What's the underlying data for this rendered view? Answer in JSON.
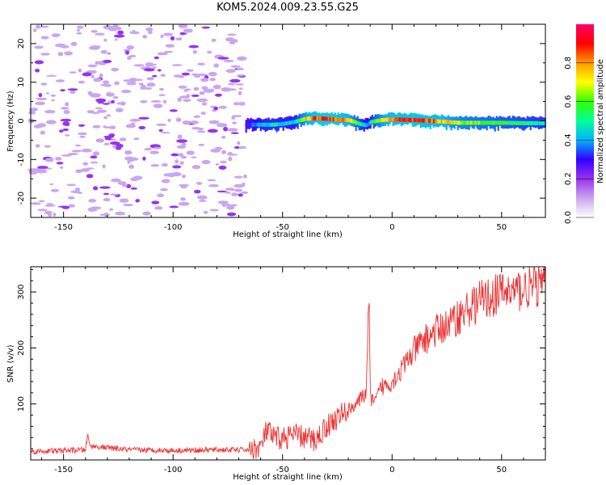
{
  "title": "KOM5.2024.009.23.55.G25",
  "chart_data": [
    {
      "type": "heatmap",
      "xlabel": "Height of straight line (km)",
      "ylabel": "Frequency (Hz)",
      "xlim": [
        -165,
        70
      ],
      "ylim": [
        -25,
        25
      ],
      "xticks": [
        -150,
        -100,
        -50,
        0,
        50
      ],
      "yticks": [
        -20,
        -10,
        0,
        10,
        20
      ],
      "colorbar": {
        "label": "Normalized spectral amplitude",
        "range": [
          0.0,
          1.0
        ],
        "ticks": [
          "0.0",
          "0.2",
          "0.4",
          "0.6",
          "0.8"
        ],
        "colors": [
          "#ffffff",
          "#c9a6f0",
          "#9933ee",
          "#3300ff",
          "#00b3ff",
          "#00ff99",
          "#33ff00",
          "#ffff00",
          "#ff9900",
          "#ff0000",
          "#ff0066"
        ]
      },
      "noise_region_x": [
        -165,
        -67
      ],
      "signal_track": {
        "x": [
          -67,
          -60,
          -55,
          -50,
          -45,
          -40,
          -35,
          -30,
          -25,
          -20,
          -15,
          -12,
          -10,
          -5,
          0,
          5,
          10,
          20,
          30,
          40,
          50,
          60,
          70
        ],
        "freq": [
          -1,
          -1,
          -1,
          -0.8,
          -0.3,
          0.5,
          0.7,
          0.5,
          0.3,
          0.2,
          -0.8,
          -1.2,
          -0.3,
          0.2,
          0.4,
          0.3,
          0.2,
          -0.1,
          -0.5,
          -0.5,
          -0.5,
          -0.6,
          -0.6
        ],
        "amplitude": [
          0.3,
          0.45,
          0.5,
          0.45,
          0.45,
          0.75,
          0.9,
          0.95,
          0.9,
          0.8,
          0.55,
          0.4,
          0.5,
          0.75,
          0.85,
          0.9,
          0.9,
          0.85,
          0.7,
          0.65,
          0.6,
          0.55,
          0.5
        ]
      }
    },
    {
      "type": "line",
      "xlabel": "Height of straight line (km)",
      "ylabel": "SNR (v/v)",
      "xlim": [
        -165,
        70
      ],
      "ylim": [
        0,
        345
      ],
      "xticks": [
        -150,
        -100,
        -50,
        0,
        50
      ],
      "yticks": [
        100,
        200,
        300
      ],
      "color": "#ee3333",
      "series": [
        {
          "x": [
            -165,
            -140,
            -139,
            -138,
            -120,
            -100,
            -80,
            -65,
            -60,
            -57,
            -55,
            -50,
            -45,
            -40,
            -35,
            -30,
            -25,
            -20,
            -15,
            -12,
            -10.5,
            -10,
            -8,
            -5,
            0,
            5,
            10,
            15,
            20,
            25,
            30,
            35,
            40,
            45,
            50,
            55,
            60,
            65,
            70
          ],
          "y": [
            15,
            18,
            45,
            25,
            18,
            17,
            18,
            18,
            22,
            55,
            40,
            38,
            45,
            40,
            35,
            60,
            75,
            90,
            105,
            120,
            280,
            115,
            100,
            130,
            140,
            165,
            195,
            215,
            230,
            240,
            255,
            270,
            285,
            290,
            300,
            300,
            305,
            310,
            315
          ]
        }
      ]
    }
  ]
}
